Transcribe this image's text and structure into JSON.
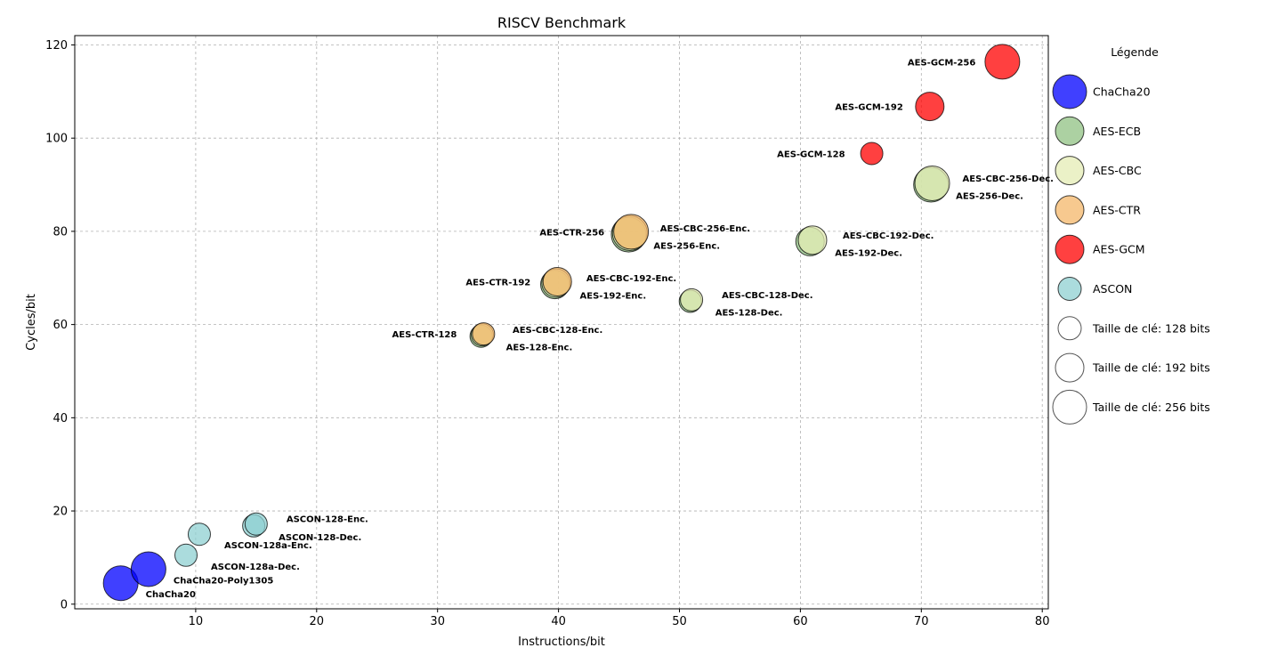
{
  "chart_data": {
    "type": "scatter",
    "title": "RISCV Benchmark",
    "xlabel": "Instructions/bit",
    "ylabel": "Cycles/bit",
    "xlim": [
      0,
      80.5
    ],
    "ylim": [
      -1,
      122
    ],
    "xticks": [
      10,
      20,
      30,
      40,
      50,
      60,
      70,
      80
    ],
    "yticks": [
      0,
      20,
      40,
      60,
      80,
      100,
      120
    ],
    "grid": true,
    "legend_placement": "right outside",
    "legend_title": "Légende",
    "categories": [
      {
        "name": "ChaCha20",
        "color": "#0000ff"
      },
      {
        "name": "AES-ECB",
        "color": "#90c283"
      },
      {
        "name": "AES-CBC",
        "color": "#e4ecb4"
      },
      {
        "name": "AES-CTR",
        "color": "#f4b769"
      },
      {
        "name": "AES-GCM",
        "color": "#ff0000"
      },
      {
        "name": "ASCON",
        "color": "#8fd0d2"
      }
    ],
    "key_sizes": [
      {
        "label": "Taille de clé: 128 bits",
        "bits": 128
      },
      {
        "label": "Taille de clé: 192 bits",
        "bits": 192
      },
      {
        "label": "Taille de clé: 256 bits",
        "bits": 256
      }
    ],
    "points": [
      {
        "label": "ChaCha20",
        "category": "ChaCha20",
        "x": 3.8,
        "y": 4.5,
        "bits": 256,
        "label_pos": "below-right"
      },
      {
        "label": "ChaCha20-Poly1305",
        "category": "ChaCha20",
        "x": 6.1,
        "y": 7.5,
        "bits": 256,
        "label_pos": "below-right"
      },
      {
        "label": "ASCON-128a-Dec.",
        "category": "ASCON",
        "x": 9.2,
        "y": 10.5,
        "bits": 128,
        "label_pos": "below-right"
      },
      {
        "label": "ASCON-128a-Enc.",
        "category": "ASCON",
        "x": 10.3,
        "y": 15.0,
        "bits": 128,
        "label_pos": "below-right"
      },
      {
        "label": "ASCON-128-Dec.",
        "category": "ASCON",
        "x": 14.8,
        "y": 16.8,
        "bits": 128,
        "label_pos": "below-right"
      },
      {
        "label": "ASCON-128-Enc.",
        "category": "ASCON",
        "x": 15.0,
        "y": 17.2,
        "bits": 128,
        "label_pos": "above-right"
      },
      {
        "label": "AES-128-Enc.",
        "category": "AES-ECB",
        "x": 33.6,
        "y": 57.5,
        "bits": 128,
        "label_pos": "below-right"
      },
      {
        "label": "AES-CBC-128-Enc.",
        "category": "AES-CBC",
        "x": 33.7,
        "y": 57.8,
        "bits": 128,
        "label_pos": "above-right"
      },
      {
        "label": "AES-CTR-128",
        "category": "AES-CTR",
        "x": 33.8,
        "y": 58.0,
        "bits": 128,
        "label_pos": "left"
      },
      {
        "label": "AES-192-Enc.",
        "category": "AES-ECB",
        "x": 39.7,
        "y": 68.6,
        "bits": 192,
        "label_pos": "below-right"
      },
      {
        "label": "AES-CBC-192-Enc.",
        "category": "AES-CBC",
        "x": 39.8,
        "y": 68.9,
        "bits": 192,
        "label_pos": "above-right"
      },
      {
        "label": "AES-CTR-192",
        "category": "AES-CTR",
        "x": 39.9,
        "y": 69.2,
        "bits": 192,
        "label_pos": "left"
      },
      {
        "label": "AES-256-Enc.",
        "category": "AES-ECB",
        "x": 45.8,
        "y": 79.3,
        "bits": 256,
        "label_pos": "below-right"
      },
      {
        "label": "AES-CBC-256-Enc.",
        "category": "AES-CBC",
        "x": 45.9,
        "y": 79.6,
        "bits": 256,
        "label_pos": "above-right"
      },
      {
        "label": "AES-CTR-256",
        "category": "AES-CTR",
        "x": 46.0,
        "y": 79.9,
        "bits": 256,
        "label_pos": "left"
      },
      {
        "label": "AES-128-Dec.",
        "category": "AES-ECB",
        "x": 50.9,
        "y": 65.0,
        "bits": 128,
        "label_pos": "below-right"
      },
      {
        "label": "AES-CBC-128-Dec.",
        "category": "AES-CBC",
        "x": 51.0,
        "y": 65.3,
        "bits": 128,
        "label_pos": "above-right"
      },
      {
        "label": "AES-192-Dec.",
        "category": "AES-ECB",
        "x": 60.8,
        "y": 77.8,
        "bits": 192,
        "label_pos": "below-right"
      },
      {
        "label": "AES-CBC-192-Dec.",
        "category": "AES-CBC",
        "x": 61.0,
        "y": 78.1,
        "bits": 192,
        "label_pos": "above-right"
      },
      {
        "label": "AES-256-Dec.",
        "category": "AES-ECB",
        "x": 70.8,
        "y": 90.0,
        "bits": 256,
        "label_pos": "below-right"
      },
      {
        "label": "AES-CBC-256-Dec.",
        "category": "AES-CBC",
        "x": 70.9,
        "y": 90.3,
        "bits": 256,
        "label_pos": "above-right"
      },
      {
        "label": "AES-GCM-128",
        "category": "AES-GCM",
        "x": 65.9,
        "y": 96.7,
        "bits": 128,
        "label_pos": "left"
      },
      {
        "label": "AES-GCM-192",
        "category": "AES-GCM",
        "x": 70.7,
        "y": 106.8,
        "bits": 192,
        "label_pos": "left"
      },
      {
        "label": "AES-GCM-256",
        "category": "AES-GCM",
        "x": 76.7,
        "y": 116.4,
        "bits": 256,
        "label_pos": "left"
      }
    ]
  }
}
